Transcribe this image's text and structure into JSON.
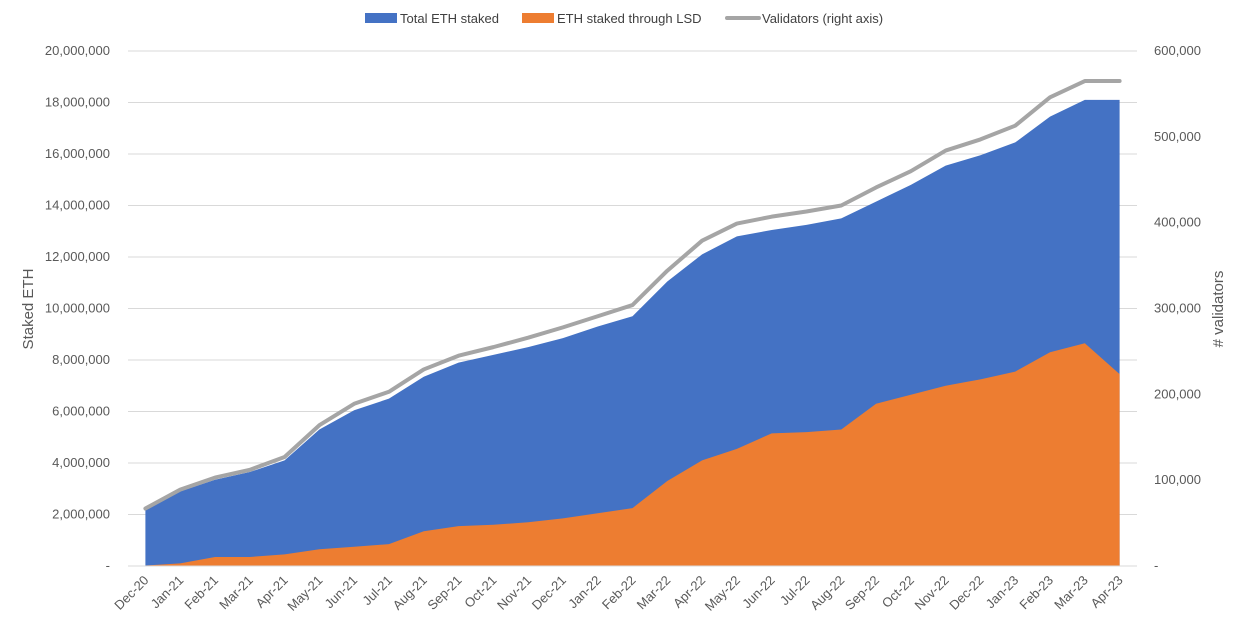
{
  "chart_data": {
    "type": "area",
    "categories": [
      "Dec-20",
      "Jan-21",
      "Feb-21",
      "Mar-21",
      "Apr-21",
      "May-21",
      "Jun-21",
      "Jul-21",
      "Aug-21",
      "Sep-21",
      "Oct-21",
      "Nov-21",
      "Dec-21",
      "Jan-22",
      "Feb-22",
      "Mar-22",
      "Apr-22",
      "May-22",
      "Jun-22",
      "Jul-22",
      "Aug-22",
      "Sep-22",
      "Oct-22",
      "Nov-22",
      "Dec-22",
      "Jan-23",
      "Feb-23",
      "Mar-23",
      "Apr-23"
    ],
    "ylabel": "Staked ETH",
    "y2label": "# validators",
    "ylim": [
      0,
      20000000
    ],
    "y2lim": [
      0,
      600000
    ],
    "yticks": [
      "-",
      "2,000,000",
      "4,000,000",
      "6,000,000",
      "8,000,000",
      "10,000,000",
      "12,000,000",
      "14,000,000",
      "16,000,000",
      "18,000,000",
      "20,000,000"
    ],
    "y2ticks": [
      "-",
      "100,000",
      "200,000",
      "300,000",
      "400,000",
      "500,000",
      "600,000"
    ],
    "legend_position": "top",
    "grid": true,
    "series": [
      {
        "name": "Total ETH staked",
        "kind": "area",
        "axis": "left",
        "color": "#4472C4",
        "values": [
          2200000,
          2900000,
          3350000,
          3650000,
          4100000,
          5300000,
          6050000,
          6500000,
          7350000,
          7900000,
          8200000,
          8500000,
          8850000,
          9300000,
          9700000,
          11050000,
          12100000,
          12800000,
          13050000,
          13250000,
          13500000,
          14150000,
          14800000,
          15550000,
          15950000,
          16450000,
          17450000,
          18100000,
          18100000
        ]
      },
      {
        "name": "ETH staked through LSD",
        "kind": "area",
        "axis": "left",
        "color": "#ED7D31",
        "values": [
          20000,
          100000,
          350000,
          350000,
          450000,
          650000,
          750000,
          850000,
          1350000,
          1550000,
          1600000,
          1700000,
          1850000,
          2050000,
          2250000,
          3300000,
          4100000,
          4550000,
          5150000,
          5200000,
          5300000,
          6300000,
          6650000,
          7000000,
          7250000,
          7550000,
          8300000,
          8650000,
          7450000
        ]
      },
      {
        "name": "Validators (right axis)",
        "kind": "line",
        "axis": "right",
        "color": "#A5A5A5",
        "values": [
          67000,
          89000,
          103000,
          112000,
          127000,
          164000,
          189000,
          203000,
          229000,
          245000,
          255000,
          266000,
          278000,
          291000,
          304000,
          344000,
          379000,
          399000,
          407000,
          413000,
          420000,
          441000,
          460000,
          484000,
          497000,
          513000,
          546000,
          565000,
          565000
        ]
      }
    ]
  }
}
